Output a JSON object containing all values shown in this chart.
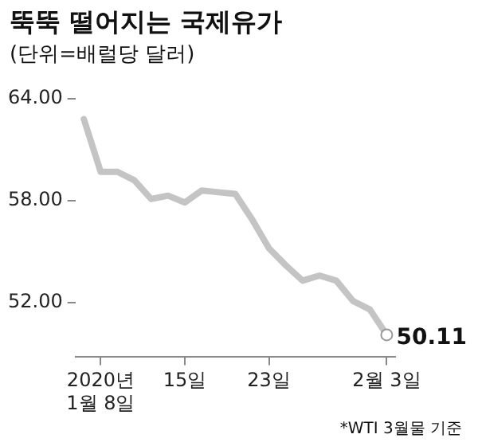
{
  "chart_data": {
    "type": "line",
    "title": "뚝뚝 떨어지는 국제유가",
    "subtitle": "(단위=배럴당 달러)",
    "categories": [
      null,
      "2020년\n1월 8일",
      null,
      null,
      null,
      null,
      "15일",
      null,
      null,
      null,
      null,
      "23일",
      null,
      null,
      null,
      null,
      null,
      null,
      "2월 3일"
    ],
    "series": [
      {
        "color": "#c4c4c4",
        "values": [
          62.8,
          59.7,
          59.7,
          59.2,
          58.1,
          58.3,
          57.9,
          58.6,
          58.5,
          58.4,
          56.9,
          55.2,
          54.2,
          53.3,
          53.6,
          53.3,
          52.1,
          51.6,
          50.11
        ]
      }
    ],
    "ylim": [
      48.8,
      64
    ],
    "yticks": [
      {
        "value": 52,
        "label": "52.00"
      },
      {
        "value": 58,
        "label": "58.00"
      },
      {
        "value": 64,
        "label": "64.00"
      }
    ],
    "grid": false,
    "legend": false,
    "marker": "none",
    "line_style": "solid",
    "annotations": [
      {
        "text": "50.11",
        "x": "2월 3일",
        "y": 50.11
      },
      "*WTI 3월물 기준"
    ]
  }
}
